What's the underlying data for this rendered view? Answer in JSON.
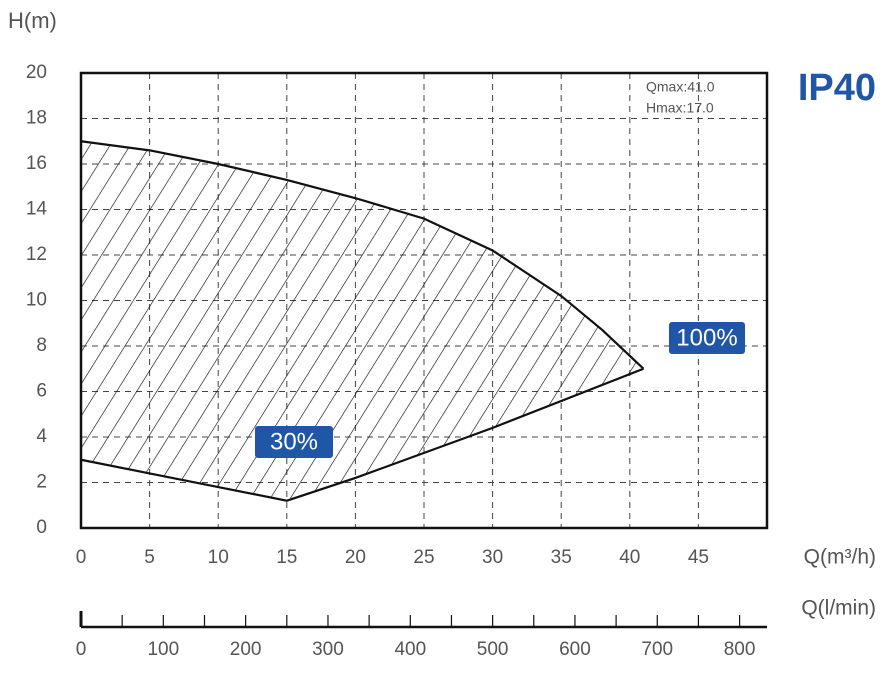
{
  "chart_data": {
    "type": "area",
    "title": "IP40",
    "y_label": "H(m)",
    "x_label": "Q(m³/h)",
    "x2_label": "Q(l/min)",
    "annotations": [
      "Qmax:41.0",
      "Hmax:17.0"
    ],
    "xlim": [
      0,
      50
    ],
    "xticks": [
      0,
      5,
      10,
      15,
      20,
      25,
      30,
      35,
      40,
      45
    ],
    "ylim": [
      0,
      20
    ],
    "yticks": [
      0,
      2,
      4,
      6,
      8,
      10,
      12,
      14,
      16,
      18,
      20
    ],
    "x2lim": [
      0,
      833.3
    ],
    "x2ticks": [
      0,
      100,
      200,
      300,
      400,
      500,
      600,
      700,
      800
    ],
    "x2minorticks": [
      50,
      150,
      250,
      350,
      450,
      550,
      650,
      750
    ],
    "grid": true,
    "hatch": true,
    "line_color": "#111111",
    "label_color": "#1f56a8",
    "series": [
      {
        "name": "100%",
        "x": [
          0,
          5,
          10,
          15,
          20,
          25,
          30,
          35,
          38,
          41
        ],
        "values": [
          17,
          16.6,
          16,
          15.3,
          14.5,
          13.6,
          12.2,
          10.2,
          8.7,
          7
        ]
      },
      {
        "name": "30%",
        "x": [
          0,
          5,
          10,
          15,
          20,
          30,
          41
        ],
        "values": [
          3,
          2.4,
          1.8,
          1.2,
          2.2,
          4.4,
          7
        ]
      }
    ]
  }
}
